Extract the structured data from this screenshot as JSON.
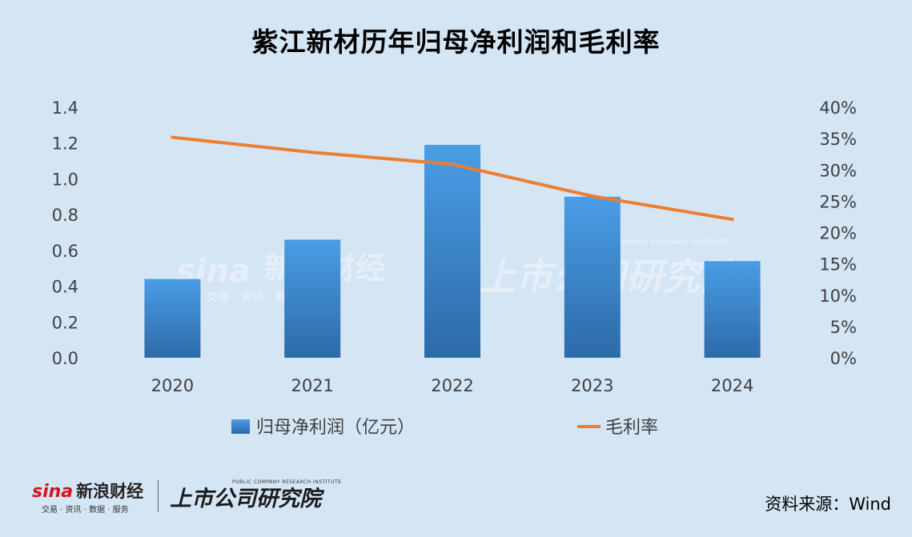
{
  "colors": {
    "background": "#d4e5f4",
    "bar_top": "#4a9de6",
    "bar_bottom": "#2d6aa8",
    "line": "#ed7d31",
    "axis_text": "#404040"
  },
  "watermark": {
    "brand": "sina",
    "brand_cn": "新浪财经",
    "tagline": "交易 · 资讯 · 数据 · 服务",
    "institute_cn": "上市公司研究院",
    "institute_en": "PUBLIC COMPANY RESEARCH INSTITUTE"
  },
  "footer": {
    "sina_word": "sina",
    "sina_cn": "新浪财经",
    "sina_tagline": "交易 · 资讯 · 数据 · 服务",
    "institute_cn": "上市公司研究院",
    "institute_en": "PUBLIC COMPANY RESEARCH INSTITUTE",
    "source": "资料来源：Wind"
  },
  "chart_data": {
    "type": "bar",
    "title": "紫江新材历年归母净利润和毛利率",
    "categories": [
      "2020",
      "2021",
      "2022",
      "2023",
      "2024"
    ],
    "series": [
      {
        "name": "归母净利润（亿元）",
        "type": "bar",
        "axis": "left",
        "values": [
          0.44,
          0.66,
          1.19,
          0.9,
          0.54
        ]
      },
      {
        "name": "毛利率",
        "type": "line",
        "axis": "right",
        "values": [
          35.2,
          32.8,
          30.9,
          25.8,
          22.1
        ]
      }
    ],
    "y_left": {
      "ylim": [
        0,
        1.4
      ],
      "ticks": [
        "0.0",
        "0.2",
        "0.4",
        "0.6",
        "0.8",
        "1.0",
        "1.2",
        "1.4"
      ]
    },
    "y_right": {
      "ylim": [
        0,
        40
      ],
      "ticks": [
        "0%",
        "5%",
        "10%",
        "15%",
        "20%",
        "25%",
        "30%",
        "35%",
        "40%"
      ]
    },
    "grid": false,
    "legend": "bottom"
  }
}
